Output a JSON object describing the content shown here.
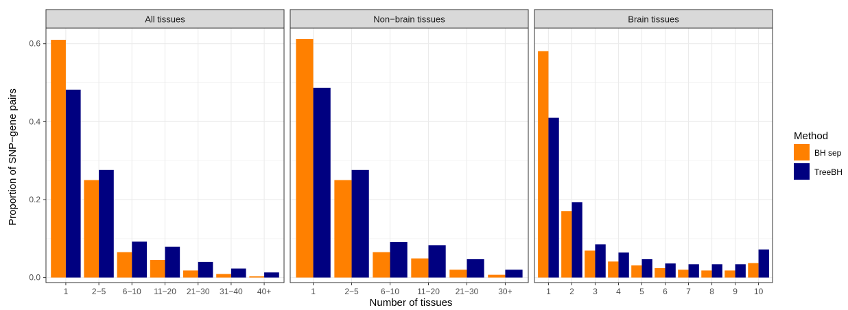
{
  "colors": {
    "BH sep": "#FF8000",
    "TreeBH": "#000080",
    "strip_bg": "#D9D9D9",
    "grid_major": "#EBEBEB",
    "grid_minor": "#F5F5F5",
    "panel_border": "#333333"
  },
  "chart_data": {
    "type": "bar",
    "xlabel": "Number of tissues",
    "ylabel": "Proportion of SNP−gene pairs",
    "ylim": [
      -0.013,
      0.64
    ],
    "yticks": [
      0.0,
      0.2,
      0.4,
      0.6
    ],
    "ytick_labels": [
      "0.0",
      "0.2",
      "0.4",
      "0.6"
    ],
    "grid": true,
    "legend": {
      "title": "Method",
      "placement": "right",
      "entries": [
        "BH sep",
        "TreeBH"
      ]
    },
    "panels": [
      {
        "title": "All tissues",
        "categories": [
          "1",
          "2−5",
          "6−10",
          "11−20",
          "21−30",
          "31−40",
          "40+"
        ],
        "series": [
          {
            "name": "BH sep",
            "values": [
              0.61,
              0.25,
              0.065,
              0.045,
              0.018,
              0.009,
              0.003
            ]
          },
          {
            "name": "TreeBH",
            "values": [
              0.482,
              0.276,
              0.092,
              0.079,
              0.04,
              0.023,
              0.013
            ]
          }
        ]
      },
      {
        "title": "Non−brain tissues",
        "categories": [
          "1",
          "2−5",
          "6−10",
          "11−20",
          "21−30",
          "30+"
        ],
        "series": [
          {
            "name": "BH sep",
            "values": [
              0.612,
              0.25,
              0.065,
              0.049,
              0.02,
              0.007
            ]
          },
          {
            "name": "TreeBH",
            "values": [
              0.487,
              0.276,
              0.091,
              0.083,
              0.047,
              0.02
            ]
          }
        ]
      },
      {
        "title": "Brain tissues",
        "categories": [
          "1",
          "2",
          "3",
          "4",
          "5",
          "6",
          "7",
          "8",
          "9",
          "10"
        ],
        "series": [
          {
            "name": "BH sep",
            "values": [
              0.581,
              0.17,
              0.069,
              0.041,
              0.031,
              0.024,
              0.02,
              0.018,
              0.018,
              0.037
            ]
          },
          {
            "name": "TreeBH",
            "values": [
              0.41,
              0.193,
              0.085,
              0.064,
              0.047,
              0.036,
              0.034,
              0.034,
              0.034,
              0.072
            ]
          }
        ]
      }
    ]
  }
}
